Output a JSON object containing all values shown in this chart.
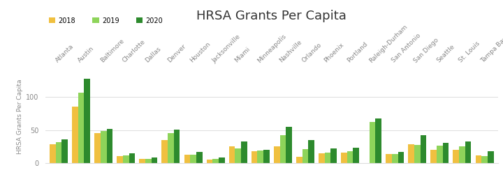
{
  "title": "HRSA Grants Per Capita",
  "ylabel": "HRSA Grants Per Capita",
  "cities": [
    "Atlanta",
    "Austin",
    "Baltimore",
    "Charlotte",
    "Dallas",
    "Denver",
    "Houston",
    "Jacksonville",
    "Miami",
    "Minneapolis",
    "Nashville",
    "Orlando",
    "Phoenix",
    "Portland",
    "Raleigh-Durham",
    "San Antonio",
    "San Diego",
    "Seattle",
    "St. Louis",
    "Tampa Bay"
  ],
  "values_2018": [
    28,
    86,
    45,
    10,
    6,
    35,
    12,
    5,
    25,
    18,
    25,
    9,
    15,
    16,
    0,
    13,
    28,
    20,
    20,
    11
  ],
  "values_2019": [
    31,
    107,
    48,
    11,
    6,
    45,
    12,
    6,
    22,
    19,
    42,
    21,
    16,
    18,
    62,
    13,
    27,
    26,
    25,
    10
  ],
  "values_2020": [
    36,
    128,
    52,
    15,
    8,
    51,
    17,
    8,
    32,
    20,
    55,
    35,
    22,
    23,
    68,
    17,
    42,
    30,
    33,
    18
  ],
  "color_2018": "#f0c040",
  "color_2019": "#8ed45a",
  "color_2020": "#2d8a2d",
  "bar_width": 0.27,
  "ylim": [
    0,
    140
  ],
  "yticks": [
    0,
    50,
    100
  ],
  "legend_labels": [
    "2018",
    "2019",
    "2020"
  ],
  "bg_color": "#ffffff",
  "grid_color": "#dddddd",
  "title_fontsize": 13,
  "axis_label_fontsize": 6.5,
  "tick_fontsize": 7,
  "xlabel_rotation": 45,
  "text_color": "#888888"
}
